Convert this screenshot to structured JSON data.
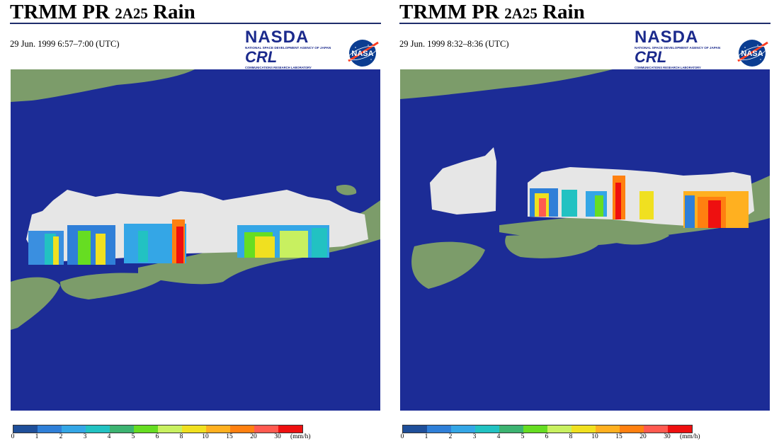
{
  "panels": [
    {
      "title_main": "TRMM PR",
      "title_product": "2A25",
      "title_tail": "Rain",
      "timestamp": "29 Jun. 1999 6:57–7:00 (UTC)"
    },
    {
      "title_main": "TRMM PR",
      "title_product": "2A25",
      "title_tail": "Rain",
      "timestamp": "29 Jun. 1999 8:32–8:36 (UTC)"
    }
  ],
  "logos": {
    "nasda": "NASDA",
    "nasda_sub": "NATIONAL SPACE DEVELOPMENT AGENCY OF JAPAN",
    "crl": "CRL",
    "crl_sub": "COMMUNICATIONS RESEARCH LABORATORY",
    "nasa": "NASA"
  },
  "legend": {
    "unit": "(mm/h)",
    "ticks": [
      "0",
      "1",
      "2",
      "3",
      "4",
      "5",
      "6",
      "8",
      "10",
      "15",
      "20",
      "30"
    ],
    "colors": [
      "#1f4f9a",
      "#2f7fd8",
      "#34a6e6",
      "#22c2c2",
      "#3cb371",
      "#66dd22",
      "#c8f060",
      "#f0e020",
      "#ffb020",
      "#ff8010",
      "#ff5a50",
      "#ee1010"
    ]
  },
  "colors": {
    "ocean": "#1c2c96",
    "land": "#7c9c6a",
    "title_rule": "#1f2d6b"
  }
}
